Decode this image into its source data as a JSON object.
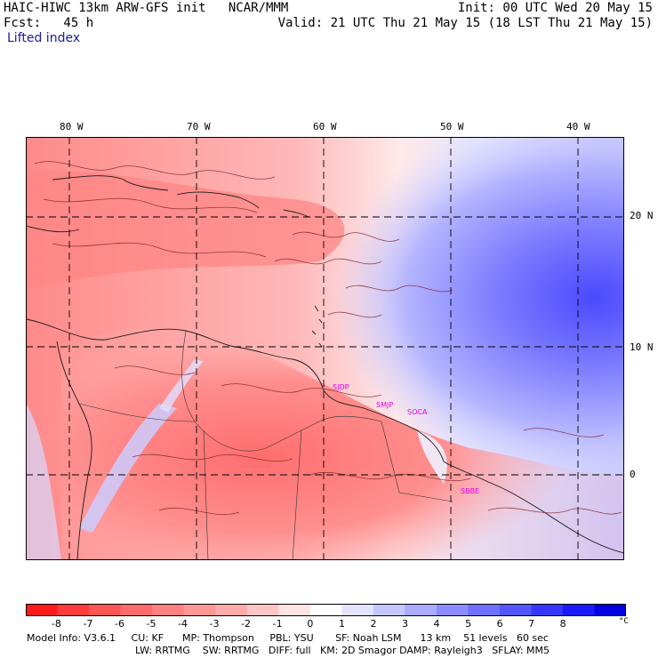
{
  "header": {
    "line1_left": "HAIC-HIWC 13km ARW-GFS init   NCAR/MMM",
    "line1_right": "Init: 00 UTC Wed 20 May 15",
    "line2_left": "Fcst:   45 h",
    "line2_right": "Valid: 21 UTC Thu 21 May 15 (18 LST Thu 21 May 15)",
    "field": "Lifted index"
  },
  "axes": {
    "lon_labels": [
      "80 W",
      "70 W",
      "60 W",
      "50 W",
      "40 W"
    ],
    "lat_labels": [
      "20 N",
      "10 N",
      "0"
    ]
  },
  "sites": [
    "SJDP",
    "SMJP",
    "SOCA",
    "SBBE"
  ],
  "colorbar": {
    "ticks": [
      "-8",
      "-7",
      "-6",
      "-5",
      "-4",
      "-3",
      "-2",
      "-1",
      "0",
      "1",
      "2",
      "3",
      "4",
      "5",
      "6",
      "7",
      "8"
    ],
    "unit": "°C",
    "colors": [
      "#ff1a1a",
      "#ff3a3a",
      "#ff5555",
      "#ff6b6b",
      "#ff8080",
      "#ff9797",
      "#ffabab",
      "#ffc4c4",
      "#ffe2e2",
      "#ffffff",
      "#e3e3ff",
      "#c6c6ff",
      "#aaaaff",
      "#8c8cff",
      "#7070ff",
      "#5555ff",
      "#3636ff",
      "#1a1aff",
      "#0000e0"
    ]
  },
  "footer": {
    "line1": "Model Info: V3.6.1     CU: KF      MP: Thompson     PBL: YSU       SF: Noah LSM      13 km    51 levels   60 sec",
    "line2": "LW: RRTMG    SW: RRTMG   DIFF: full   KM: 2D Smagor DAMP: Rayleigh3   SFLAY: MM5"
  }
}
